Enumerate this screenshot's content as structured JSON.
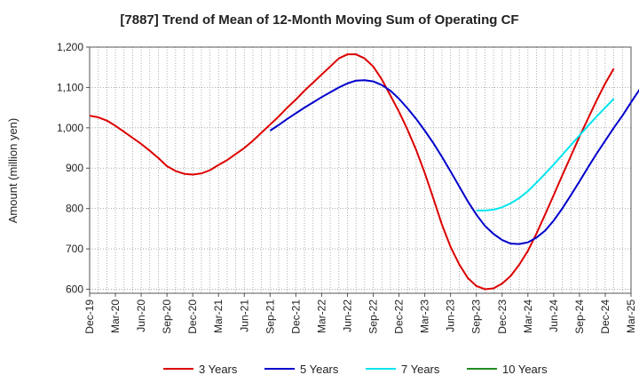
{
  "chart_data": {
    "type": "line",
    "title": "[7887]  Trend of Mean of 12-Month Moving Sum of Operating CF",
    "xlabel": "",
    "ylabel": "Amount (million yen)",
    "ylim": [
      590,
      1200
    ],
    "yticks": [
      600,
      700,
      800,
      900,
      1000,
      1100,
      1200
    ],
    "ytick_labels": [
      "600",
      "700",
      "800",
      "900",
      "1,000",
      "1,100",
      "1,200"
    ],
    "x_tick_labels": [
      "Dec-19",
      "Mar-20",
      "Jun-20",
      "Sep-20",
      "Dec-20",
      "Mar-21",
      "Jun-21",
      "Sep-21",
      "Dec-21",
      "Mar-22",
      "Jun-22",
      "Sep-22",
      "Dec-22",
      "Mar-23",
      "Jun-23",
      "Sep-23",
      "Dec-23",
      "Mar-24",
      "Jun-24",
      "Sep-24",
      "Dec-24",
      "Mar-25"
    ],
    "grid": true,
    "legend_position": "bottom",
    "series": [
      {
        "name": "3 Years",
        "color": "#dd0000",
        "start_month_index": 0,
        "values": [
          1030,
          1026,
          1018,
          1005,
          990,
          975,
          960,
          943,
          925,
          905,
          893,
          886,
          884,
          887,
          895,
          908,
          920,
          935,
          950,
          968,
          988,
          1008,
          1028,
          1050,
          1070,
          1092,
          1112,
          1132,
          1152,
          1172,
          1182,
          1182,
          1172,
          1152,
          1120,
          1080,
          1040,
          995,
          945,
          888,
          825,
          760,
          705,
          662,
          628,
          608,
          600,
          602,
          614,
          633,
          661,
          695,
          738,
          785,
          833,
          882,
          930,
          978,
          1023,
          1068,
          1110,
          1147
        ]
      },
      {
        "name": "5 Years",
        "color": "#0000cc",
        "start_month_index": 21,
        "values": [
          993,
          1007,
          1022,
          1036,
          1050,
          1063,
          1076,
          1088,
          1100,
          1110,
          1117,
          1118,
          1115,
          1106,
          1092,
          1072,
          1048,
          1022,
          993,
          962,
          928,
          892,
          855,
          818,
          785,
          757,
          737,
          722,
          713,
          712,
          716,
          728,
          745,
          770,
          800,
          833,
          867,
          902,
          936,
          968,
          1000,
          1030,
          1063,
          1095
        ]
      },
      {
        "name": "7 Years",
        "color": "#00e5ee",
        "start_month_index": 45,
        "values": [
          795,
          795,
          797,
          803,
          813,
          826,
          843,
          864,
          886,
          909,
          933,
          957,
          981,
          1005,
          1028,
          1050,
          1072
        ]
      },
      {
        "name": "10 Years",
        "color": "#228b22",
        "start_month_index": 0,
        "values": []
      }
    ]
  }
}
